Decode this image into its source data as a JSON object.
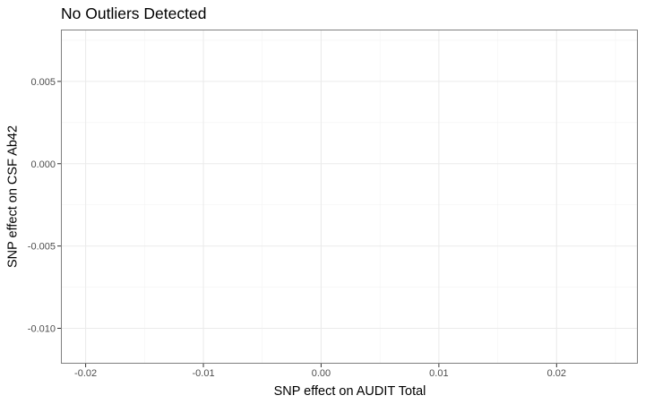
{
  "chart_data": {
    "type": "scatter",
    "title": "No Outliers Detected",
    "xlabel": "SNP effect on AUDIT Total",
    "ylabel": "SNP effect on CSF Ab42",
    "xlim": [
      -0.0221,
      0.0269
    ],
    "ylim": [
      -0.01215,
      0.00815
    ],
    "x_ticks": [
      -0.02,
      -0.01,
      0.0,
      0.01,
      0.02
    ],
    "x_tick_labels": [
      "-0.02",
      "-0.01",
      "0.00",
      "0.01",
      "0.02"
    ],
    "y_ticks": [
      0.005,
      0.0,
      -0.005,
      -0.01
    ],
    "y_tick_labels": [
      "0.005",
      "0.000",
      "-0.005",
      "-0.010"
    ],
    "x_minor_ticks": [
      -0.015,
      -0.005,
      0.005,
      0.015,
      0.025
    ],
    "y_minor_ticks": [
      0.0075,
      0.0025,
      -0.0025,
      -0.0075
    ],
    "points": [],
    "grid": true,
    "legend": "none",
    "colors": {
      "panel_border": "#7f7f7f",
      "grid_major": "#ebebeb",
      "grid_minor": "#f3f3f3",
      "tick_label": "#4d4d4d",
      "text": "#000000"
    }
  }
}
